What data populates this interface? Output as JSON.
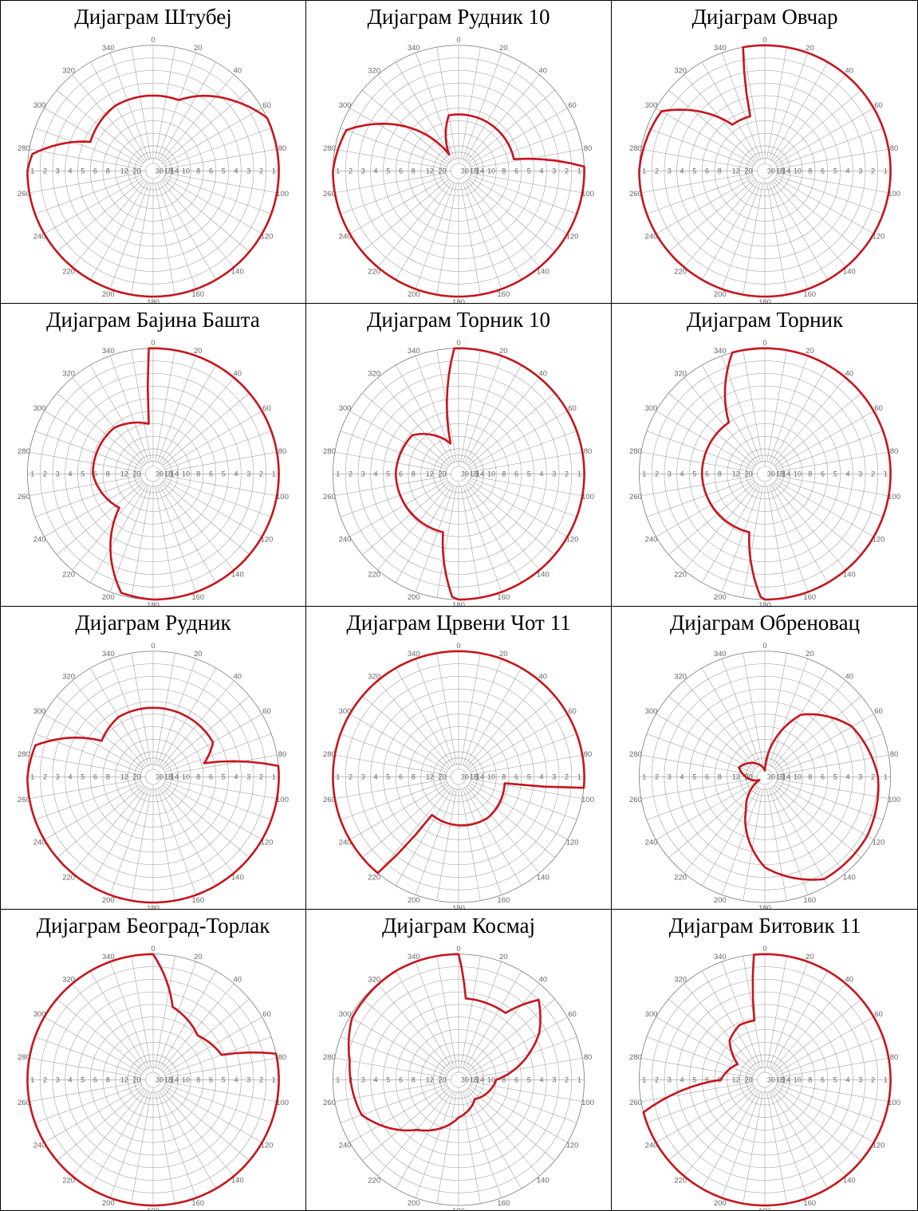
{
  "colors": {
    "pattern": "#c8141c",
    "grid": "#9a9a9a",
    "border": "#000000"
  },
  "axis": {
    "degree_labels": [
      "0",
      "20",
      "40",
      "60",
      "80",
      "100",
      "120",
      "140",
      "160",
      "180",
      "200",
      "220",
      "240",
      "260",
      "280",
      "300",
      "320",
      "340"
    ],
    "ring_labels_right": [
      "1",
      "2",
      "3",
      "4",
      "5",
      "6",
      "8",
      "10",
      "14",
      "18",
      "30"
    ],
    "ring_labels_left": [
      "1",
      "2",
      "3",
      "4",
      "5",
      "6",
      "8",
      "12",
      "20",
      "30"
    ]
  },
  "chart_data": [
    {
      "type": "polar-radiation-pattern",
      "title": "Дијаграм Штубеј",
      "points": [
        [
          0,
          0.6
        ],
        [
          20,
          0.6
        ],
        [
          50,
          0.86
        ],
        [
          65,
          1
        ],
        [
          90,
          1
        ],
        [
          180,
          1
        ],
        [
          270,
          1
        ],
        [
          278,
          0.97
        ],
        [
          295,
          0.55
        ],
        [
          330,
          0.6
        ],
        [
          360,
          0.6
        ]
      ]
    },
    {
      "type": "polar-radiation-pattern",
      "title": "Дијаграм Рудник 10",
      "points": [
        [
          0,
          0.45
        ],
        [
          20,
          0.45
        ],
        [
          65,
          0.45
        ],
        [
          78,
          0.45
        ],
        [
          88,
          1
        ],
        [
          180,
          1
        ],
        [
          270,
          1
        ],
        [
          290,
          0.95
        ],
        [
          330,
          0.15
        ],
        [
          350,
          0.45
        ],
        [
          360,
          0.45
        ]
      ]
    },
    {
      "type": "polar-radiation-pattern",
      "title": "Дијаграм Овчар",
      "points": [
        [
          0,
          1
        ],
        [
          90,
          1
        ],
        [
          180,
          1
        ],
        [
          270,
          1
        ],
        [
          300,
          0.95
        ],
        [
          325,
          0.45
        ],
        [
          345,
          0.45
        ],
        [
          350,
          1
        ],
        [
          360,
          1
        ]
      ]
    },
    {
      "type": "polar-radiation-pattern",
      "title": "Дијаграм Бајина Башта",
      "points": [
        [
          0,
          1
        ],
        [
          90,
          1
        ],
        [
          180,
          1
        ],
        [
          195,
          0.98
        ],
        [
          225,
          0.38
        ],
        [
          270,
          0.48
        ],
        [
          320,
          0.48
        ],
        [
          355,
          0.4
        ],
        [
          358,
          1
        ],
        [
          360,
          1
        ]
      ]
    },
    {
      "type": "polar-radiation-pattern",
      "title": "Дијаграм Торник 10",
      "points": [
        [
          0,
          1
        ],
        [
          90,
          1
        ],
        [
          180,
          1
        ],
        [
          183,
          0.98
        ],
        [
          195,
          0.48
        ],
        [
          270,
          0.5
        ],
        [
          310,
          0.48
        ],
        [
          345,
          0.25
        ],
        [
          358,
          1
        ],
        [
          360,
          1
        ]
      ]
    },
    {
      "type": "polar-radiation-pattern",
      "title": "Дијаграм Торник",
      "points": [
        [
          0,
          1
        ],
        [
          90,
          1
        ],
        [
          180,
          1
        ],
        [
          182,
          0.98
        ],
        [
          195,
          0.48
        ],
        [
          270,
          0.5
        ],
        [
          325,
          0.5
        ],
        [
          345,
          1
        ],
        [
          360,
          1
        ]
      ]
    },
    {
      "type": "polar-radiation-pattern",
      "title": "Дијаграм Рудник",
      "points": [
        [
          0,
          0.55
        ],
        [
          60,
          0.55
        ],
        [
          75,
          0.42
        ],
        [
          85,
          1
        ],
        [
          180,
          1
        ],
        [
          270,
          1
        ],
        [
          285,
          0.97
        ],
        [
          305,
          0.5
        ],
        [
          330,
          0.55
        ],
        [
          360,
          0.55
        ]
      ]
    },
    {
      "type": "polar-radiation-pattern",
      "title": "Дијаграм Црвени Чот 11",
      "points": [
        [
          0,
          1
        ],
        [
          80,
          1
        ],
        [
          95,
          1
        ],
        [
          98,
          0.37
        ],
        [
          145,
          0.4
        ],
        [
          215,
          0.37
        ],
        [
          220,
          1
        ],
        [
          270,
          1
        ],
        [
          360,
          1
        ]
      ]
    },
    {
      "type": "polar-radiation-pattern",
      "title": "Дијаграм Обреновац",
      "points": [
        [
          0,
          0.05
        ],
        [
          30,
          0.57
        ],
        [
          60,
          0.8
        ],
        [
          90,
          0.9
        ],
        [
          120,
          0.94
        ],
        [
          150,
          0.94
        ],
        [
          180,
          0.72
        ],
        [
          210,
          0.3
        ],
        [
          240,
          0.05
        ],
        [
          290,
          0.22
        ],
        [
          330,
          0.12
        ],
        [
          360,
          0.05
        ]
      ]
    },
    {
      "type": "polar-radiation-pattern",
      "title": "Дијаграм Београд-Торлак",
      "points": [
        [
          0,
          1
        ],
        [
          15,
          0.6
        ],
        [
          45,
          0.5
        ],
        [
          70,
          0.58
        ],
        [
          78,
          1
        ],
        [
          180,
          1
        ],
        [
          270,
          1
        ],
        [
          360,
          1
        ]
      ]
    },
    {
      "type": "polar-radiation-pattern",
      "title": "Дијаграм Космај",
      "points": [
        [
          0,
          1
        ],
        [
          5,
          0.65
        ],
        [
          35,
          0.65
        ],
        [
          45,
          0.9
        ],
        [
          60,
          0.74
        ],
        [
          90,
          0.3
        ],
        [
          140,
          0.2
        ],
        [
          180,
          0.3
        ],
        [
          220,
          0.52
        ],
        [
          250,
          0.82
        ],
        [
          280,
          0.88
        ],
        [
          300,
          0.98
        ],
        [
          330,
          1
        ],
        [
          360,
          1
        ]
      ]
    },
    {
      "type": "polar-radiation-pattern",
      "title": "Дијаграм Битовик 11",
      "points": [
        [
          0,
          1
        ],
        [
          90,
          1
        ],
        [
          180,
          1
        ],
        [
          255,
          1
        ],
        [
          270,
          0.35
        ],
        [
          300,
          0.25
        ],
        [
          318,
          0.42
        ],
        [
          335,
          0.48
        ],
        [
          350,
          0.48
        ],
        [
          355,
          1
        ],
        [
          360,
          1
        ]
      ]
    }
  ]
}
